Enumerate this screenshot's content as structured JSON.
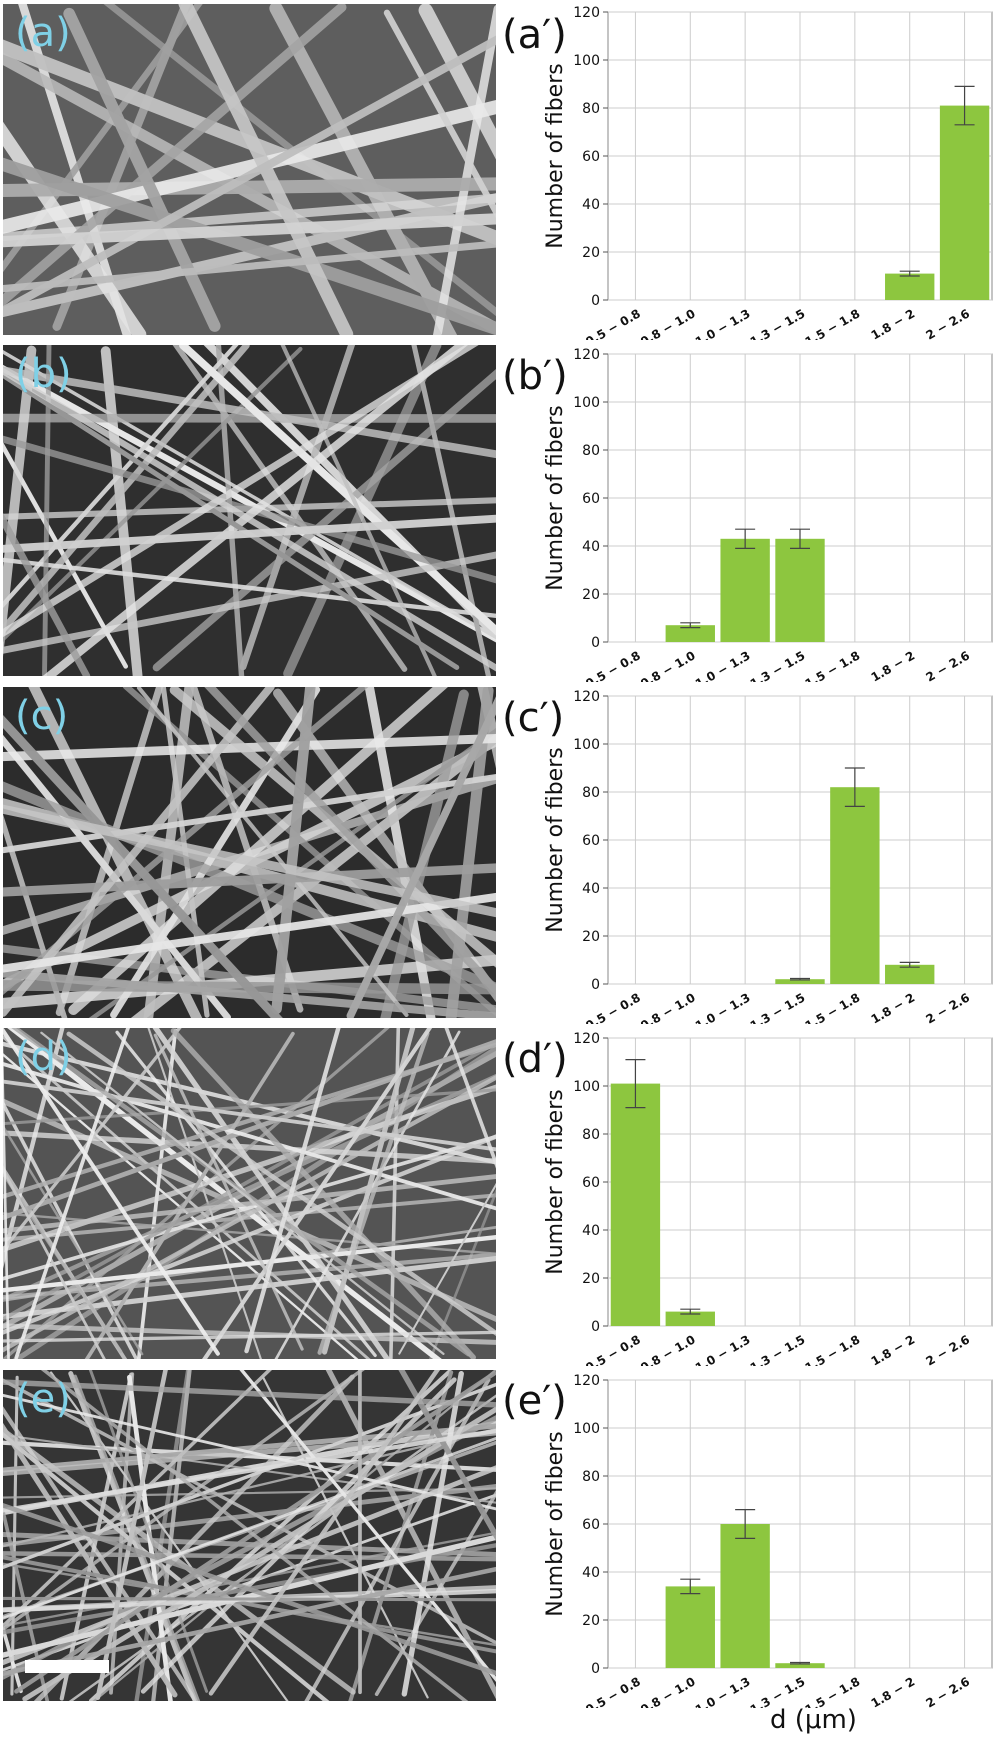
{
  "panel_labels": [
    "(a)",
    "(b)",
    "(c)",
    "(d)",
    "(e)"
  ],
  "chart_labels": [
    "(a′)",
    "(b′)",
    "(c′)",
    "(d′)",
    "(e′)"
  ],
  "sem_backgrounds": [
    "#5e5e5e",
    "#2f2f2f",
    "#2c2c2c",
    "#545454",
    "#353535"
  ],
  "sem_density": [
    22,
    30,
    40,
    60,
    70
  ],
  "sem_width": [
    12,
    7,
    8,
    4,
    4
  ],
  "shared_xlabel": "d (μm)",
  "chart_data": [
    {
      "type": "bar",
      "categories": [
        "0.5 − 0.8",
        "0.8 − 1.0",
        "1.0 − 1.3",
        "1.3 − 1.5",
        "1.5 − 1.8",
        "1.8 − 2",
        "2 − 2.6"
      ],
      "values": [
        0,
        0,
        0,
        0,
        0,
        11,
        81
      ],
      "errors": [
        0,
        0,
        0,
        0,
        0,
        1,
        8
      ],
      "ylabel": "Number of fibers",
      "xlabel": "d (μm)",
      "ylim": [
        0,
        120
      ],
      "yticks": [
        0,
        20,
        40,
        60,
        80,
        100,
        120
      ],
      "grid": true,
      "color": "#8dc63f"
    },
    {
      "type": "bar",
      "categories": [
        "0.5 − 0.8",
        "0.8 − 1.0",
        "1.0 − 1.3",
        "1.3 − 1.5",
        "1.5 − 1.8",
        "1.8 − 2",
        "2 − 2.6"
      ],
      "values": [
        0,
        7,
        43,
        43,
        0,
        0,
        0
      ],
      "errors": [
        0,
        1,
        4,
        4,
        0,
        0,
        0
      ],
      "ylabel": "Number of fibers",
      "xlabel": "d (μm)",
      "ylim": [
        0,
        120
      ],
      "yticks": [
        0,
        20,
        40,
        60,
        80,
        100,
        120
      ],
      "grid": true,
      "color": "#8dc63f"
    },
    {
      "type": "bar",
      "categories": [
        "0.5 − 0.8",
        "0.8 − 1.0",
        "1.0 − 1.3",
        "1.3 − 1.5",
        "1.5 − 1.8",
        "1.8 − 2",
        "2 − 2.6"
      ],
      "values": [
        0,
        0,
        0,
        2,
        82,
        8,
        0
      ],
      "errors": [
        0,
        0,
        0,
        0.3,
        8,
        1,
        0
      ],
      "ylabel": "Number of fibers",
      "xlabel": "d (μm)",
      "ylim": [
        0,
        120
      ],
      "yticks": [
        0,
        20,
        40,
        60,
        80,
        100,
        120
      ],
      "grid": true,
      "color": "#8dc63f"
    },
    {
      "type": "bar",
      "categories": [
        "0.5 − 0.8",
        "0.8 − 1.0",
        "1.0 − 1.3",
        "1.3 − 1.5",
        "1.5 − 1.8",
        "1.8 − 2",
        "2 − 2.6"
      ],
      "values": [
        101,
        6,
        0,
        0,
        0,
        0,
        0
      ],
      "errors": [
        10,
        1,
        0,
        0,
        0,
        0,
        0
      ],
      "ylabel": "Number of fibers",
      "xlabel": "d (μm)",
      "ylim": [
        0,
        120
      ],
      "yticks": [
        0,
        20,
        40,
        60,
        80,
        100,
        120
      ],
      "grid": true,
      "color": "#8dc63f"
    },
    {
      "type": "bar",
      "categories": [
        "0.5 − 0.8",
        "0.8 − 1.0",
        "1.0 − 1.3",
        "1.3 − 1.5",
        "1.5 − 1.8",
        "1.8 − 2",
        "2 − 2.6"
      ],
      "values": [
        0,
        34,
        60,
        2,
        0,
        0,
        0
      ],
      "errors": [
        0,
        3,
        6,
        0.3,
        0,
        0,
        0
      ],
      "ylabel": "Number of fibers",
      "xlabel": "d (μm)",
      "ylim": [
        0,
        120
      ],
      "yticks": [
        0,
        20,
        40,
        60,
        80,
        100,
        120
      ],
      "grid": true,
      "color": "#8dc63f"
    }
  ]
}
